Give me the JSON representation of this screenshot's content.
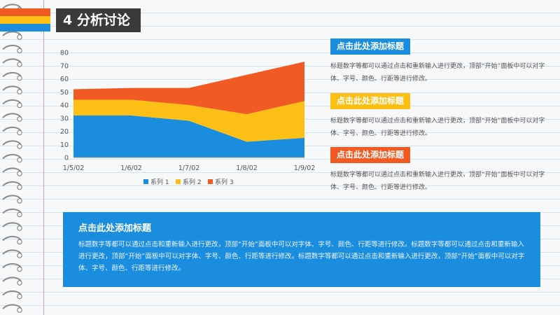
{
  "header": {
    "title": "4 分析讨论",
    "stripe_colors": [
      "#f15a22",
      "#fbbf16",
      "#1b8dde"
    ]
  },
  "chart_data": {
    "type": "area",
    "stacked": true,
    "categories": [
      "1/5/02",
      "1/6/02",
      "1/7/02",
      "1/8/02",
      "1/9/02"
    ],
    "series": [
      {
        "name": "系列 1",
        "color": "#1b8dde",
        "values": [
          32,
          32,
          28,
          12,
          15
        ]
      },
      {
        "name": "系列 2",
        "color": "#fbbf16",
        "values": [
          12,
          12,
          12,
          21,
          28
        ]
      },
      {
        "name": "系列 3",
        "color": "#f15a22",
        "values": [
          8,
          9,
          13,
          30,
          30
        ]
      }
    ],
    "yticks": [
      "0",
      "10",
      "20",
      "30",
      "40",
      "50",
      "60",
      "70",
      "80"
    ],
    "ylim": [
      0,
      80
    ],
    "legend_position": "bottom",
    "grid": false
  },
  "side_items": [
    {
      "title": "点击此处添加标题",
      "color": "#1b8dde",
      "text": "标题数字等都可以通过点击和重新输入进行更改，顶部“开始”面板中可以对字体、字号、颜色、行距等进行修改。"
    },
    {
      "title": "点击此处添加标题",
      "color": "#fbbf16",
      "text": "标题数字等都可以通过点击和重新输入进行更改，顶部“开始”面板中可以对字体、字号、颜色、行距等进行修改。"
    },
    {
      "title": "点击此处添加标题",
      "color": "#f15a22",
      "text": "标题数字等都可以通过点击和重新输入进行更改，顶部“开始”面板中可以对字体、字号、颜色、行距等进行修改。"
    }
  ],
  "panel": {
    "title": "点击此处添加标题",
    "text": "标题数字等都可以通过点击和重新输入进行更改，顶部“开始”面板中可以对字体、字号、颜色、行距等进行修改。标题数字等都可以通过点击和重新输入进行更改，顶部“开始”面板中可以对字体、字号、颜色、行距等进行修改。标题数字等都可以通过点击和重新输入进行更改，顶部“开始”面板中可以对字体、字号、颜色、行距等进行修改。"
  }
}
